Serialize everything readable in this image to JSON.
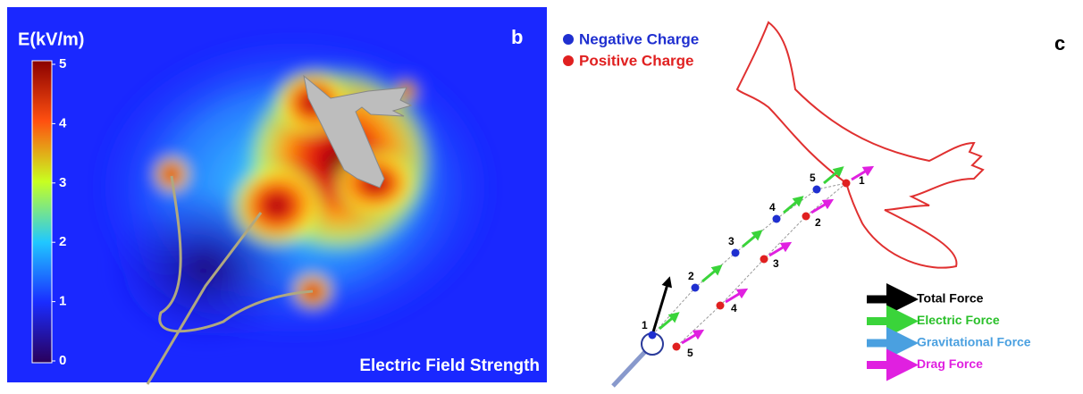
{
  "panel_b": {
    "label": "b",
    "colorbar": {
      "title": "E(kV/m)",
      "ticks": [
        0,
        1,
        2,
        3,
        4,
        5
      ],
      "range": [
        0,
        5
      ]
    },
    "caption": "Electric Field Strength"
  },
  "panel_c": {
    "label": "c",
    "legend": [
      "Negative Charge",
      "Positive Charge"
    ],
    "negative_points": [
      "1",
      "2",
      "3",
      "4",
      "5"
    ],
    "positive_points": [
      "1",
      "2",
      "3",
      "4",
      "5"
    ],
    "force_legend": [
      "Total Force",
      "Electric Force",
      "Gravitational Force",
      "Drag Force"
    ]
  }
}
